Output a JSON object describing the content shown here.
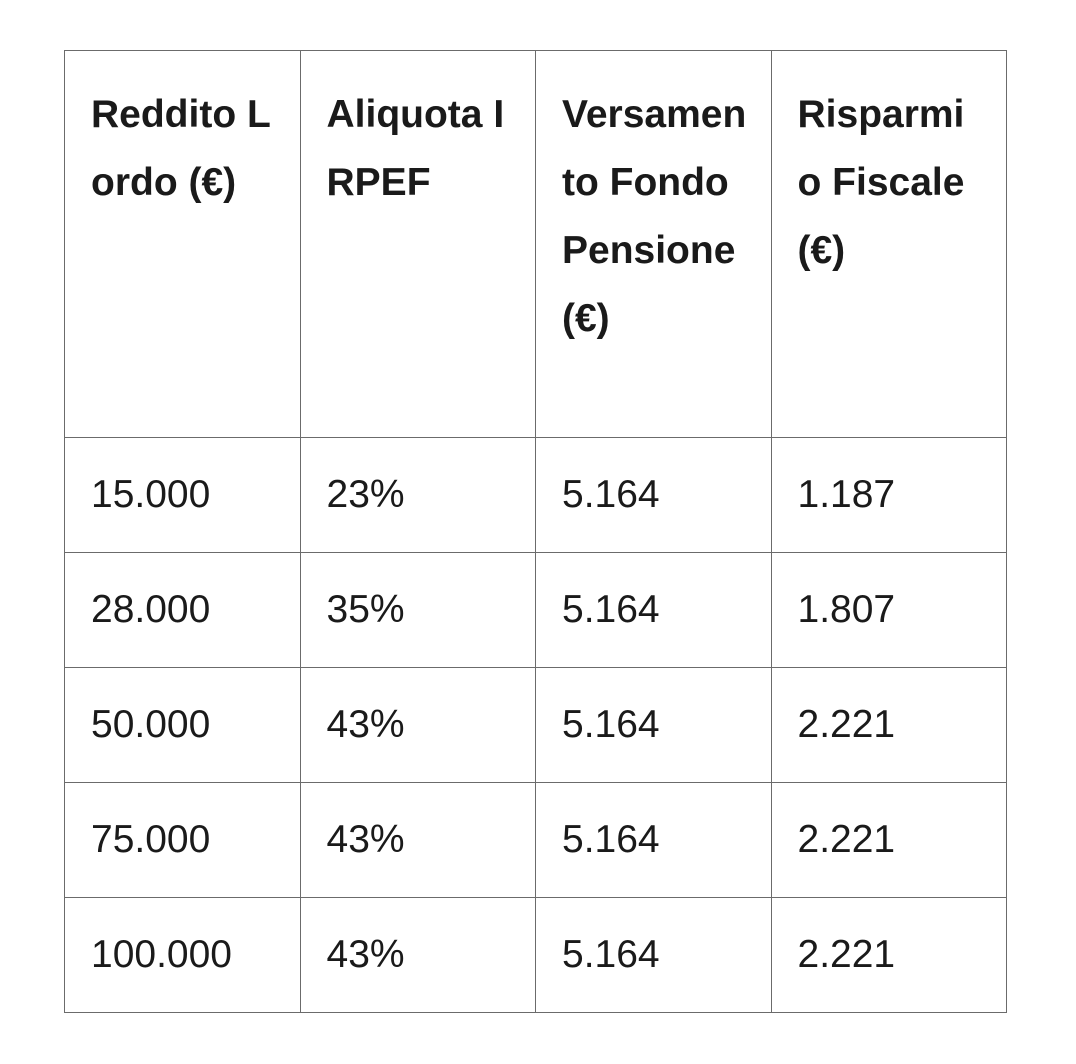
{
  "table": {
    "header": [
      "Reddito Lordo (€)",
      "Aliquota IRPEF",
      "Versamento Fondo Pensione (€)",
      "Risparmio Fiscale (€)"
    ],
    "rows": [
      [
        "15.000",
        "23%",
        "5.164",
        "1.187"
      ],
      [
        "28.000",
        "35%",
        "5.164",
        "1.807"
      ],
      [
        "50.000",
        "43%",
        "5.164",
        "2.221"
      ],
      [
        "75.000",
        "43%",
        "5.164",
        "2.221"
      ],
      [
        "100.000",
        "43%",
        "5.164",
        "2.221"
      ]
    ]
  }
}
